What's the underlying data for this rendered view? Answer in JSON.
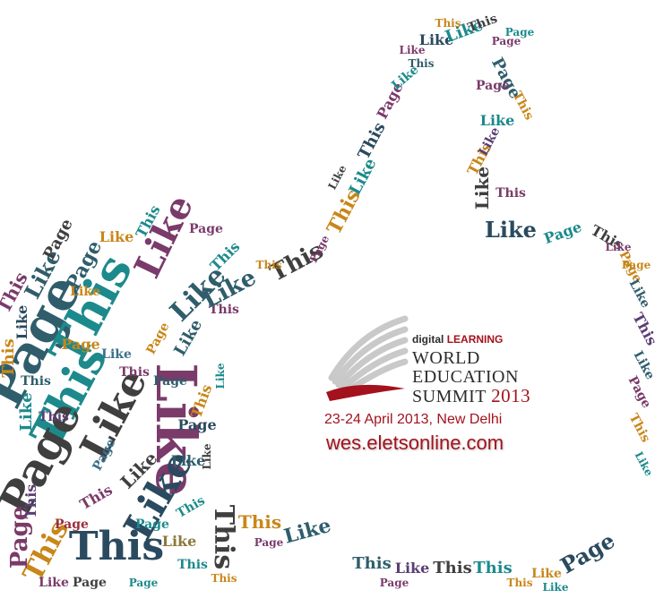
{
  "cloud": {
    "words": [
      "Like",
      "This",
      "Page"
    ],
    "colors": [
      "#2f5d6b",
      "#1c8a8c",
      "#7a3a6a",
      "#3f3f3f",
      "#c8871a",
      "#5a3e73",
      "#3a6f8a",
      "#8a7a3a",
      "#9b2d3b",
      "#2a4a5f"
    ]
  },
  "logo": {
    "brand_prefix": "digital",
    "brand_highlight": "LEARNING",
    "line1": "WORLD",
    "line2": "EDUCATION",
    "line3": "SUMMIT",
    "year": "2013",
    "dates": "23-24 April 2013, New Delhi",
    "url": "wes.eletsonline.com"
  },
  "colors": {
    "accent": "#a3121d",
    "dark": "#2b2b2b"
  }
}
